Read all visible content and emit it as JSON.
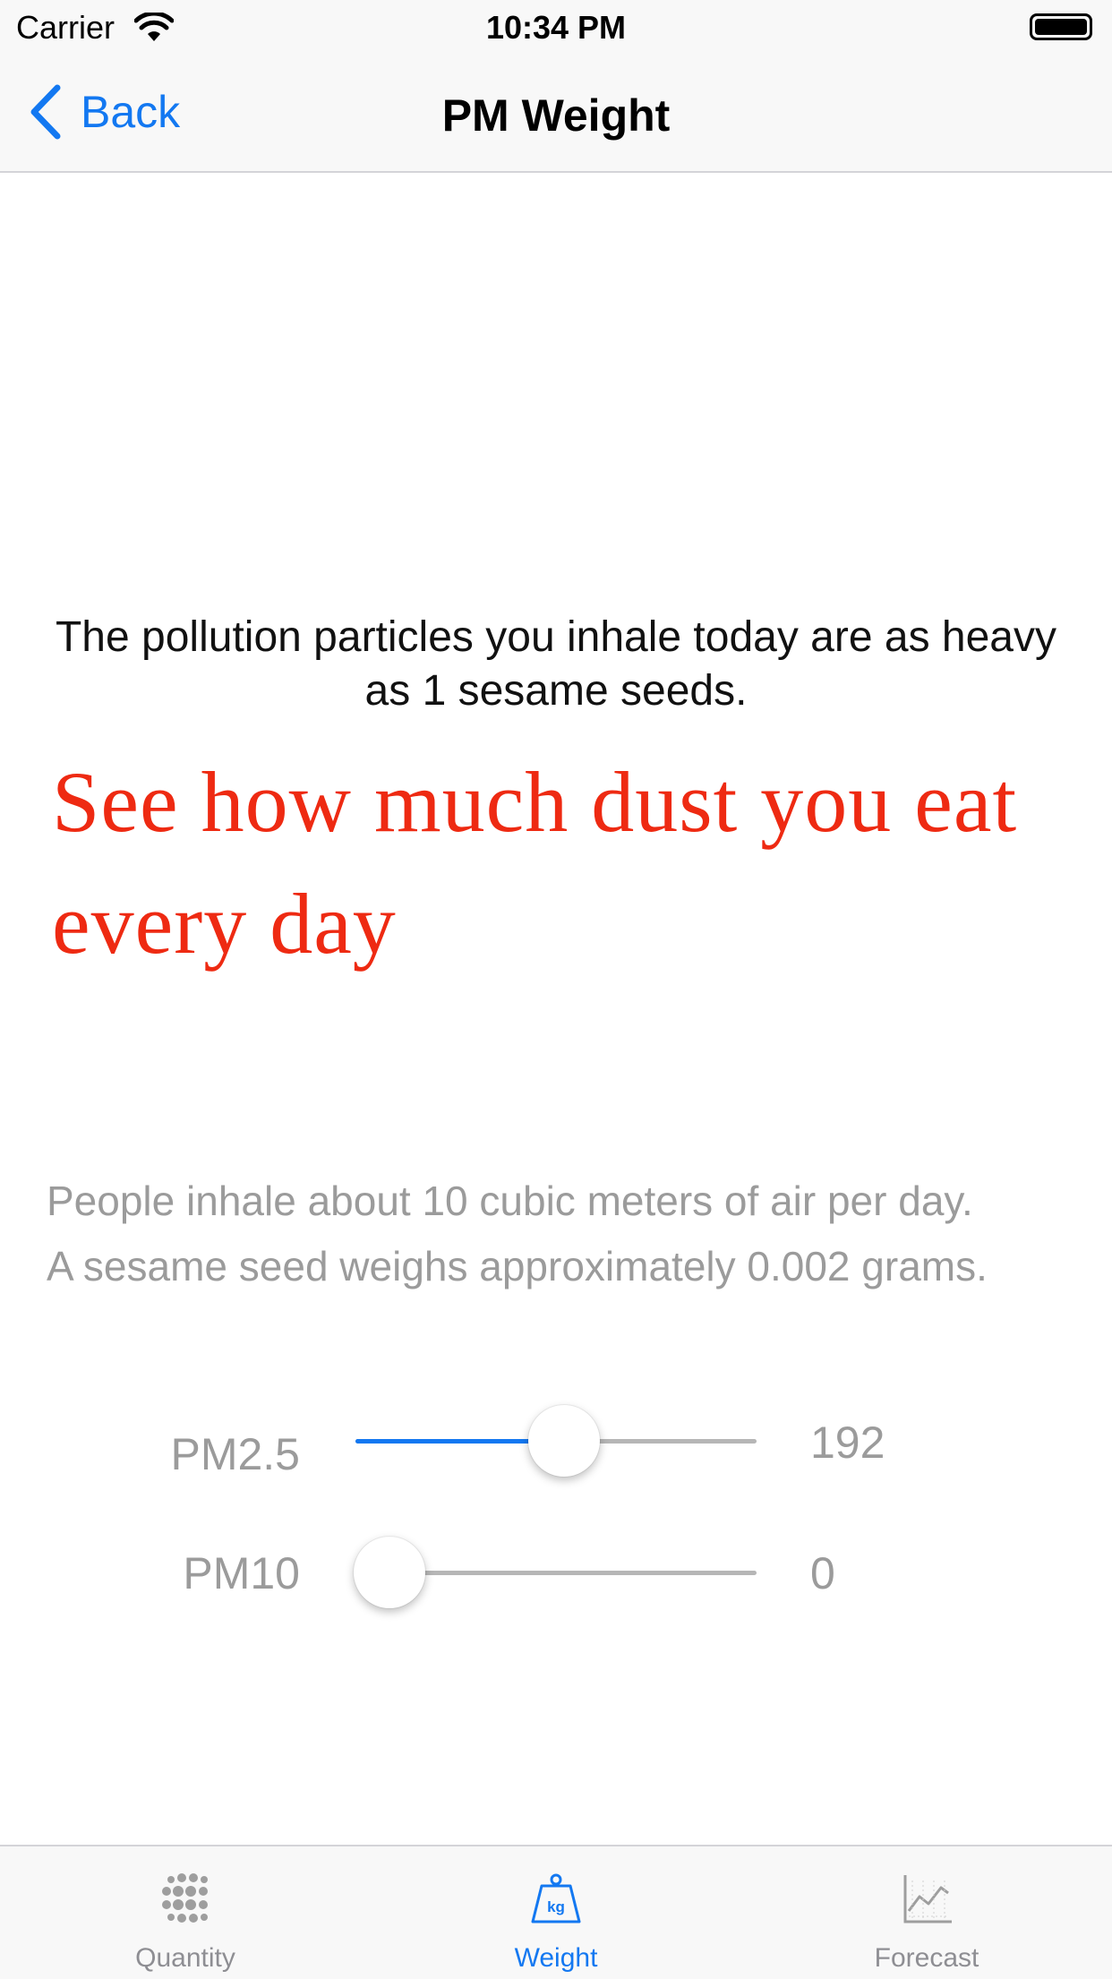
{
  "status_bar": {
    "carrier": "Carrier",
    "time": "10:34 PM"
  },
  "nav": {
    "back_label": "Back",
    "title": "PM Weight"
  },
  "main": {
    "headline_line1": "The pollution particles you inhale today are as heavy",
    "headline_line2": "as 1 sesame seeds.",
    "promo_line1": "See how much dust you eat",
    "promo_line2": "every day",
    "info_line1": "People inhale about 10 cubic meters of air per day.",
    "info_line2": "A sesame seed weighs approximately 0.002 grams."
  },
  "sliders": [
    {
      "label": "PM2.5",
      "value": "192",
      "level": 0.52
    },
    {
      "label": "PM10",
      "value": "0",
      "level": 0
    }
  ],
  "tabs": [
    {
      "label": "Quantity",
      "icon": "dots-grid-icon",
      "active": false
    },
    {
      "label": "Weight",
      "icon": "kg-weight-icon",
      "active": true
    },
    {
      "label": "Forecast",
      "icon": "line-chart-icon",
      "active": false
    }
  ],
  "colors": {
    "accent": "#1378f1",
    "promo": "#ee2a12",
    "muted": "#9b9b9b"
  }
}
